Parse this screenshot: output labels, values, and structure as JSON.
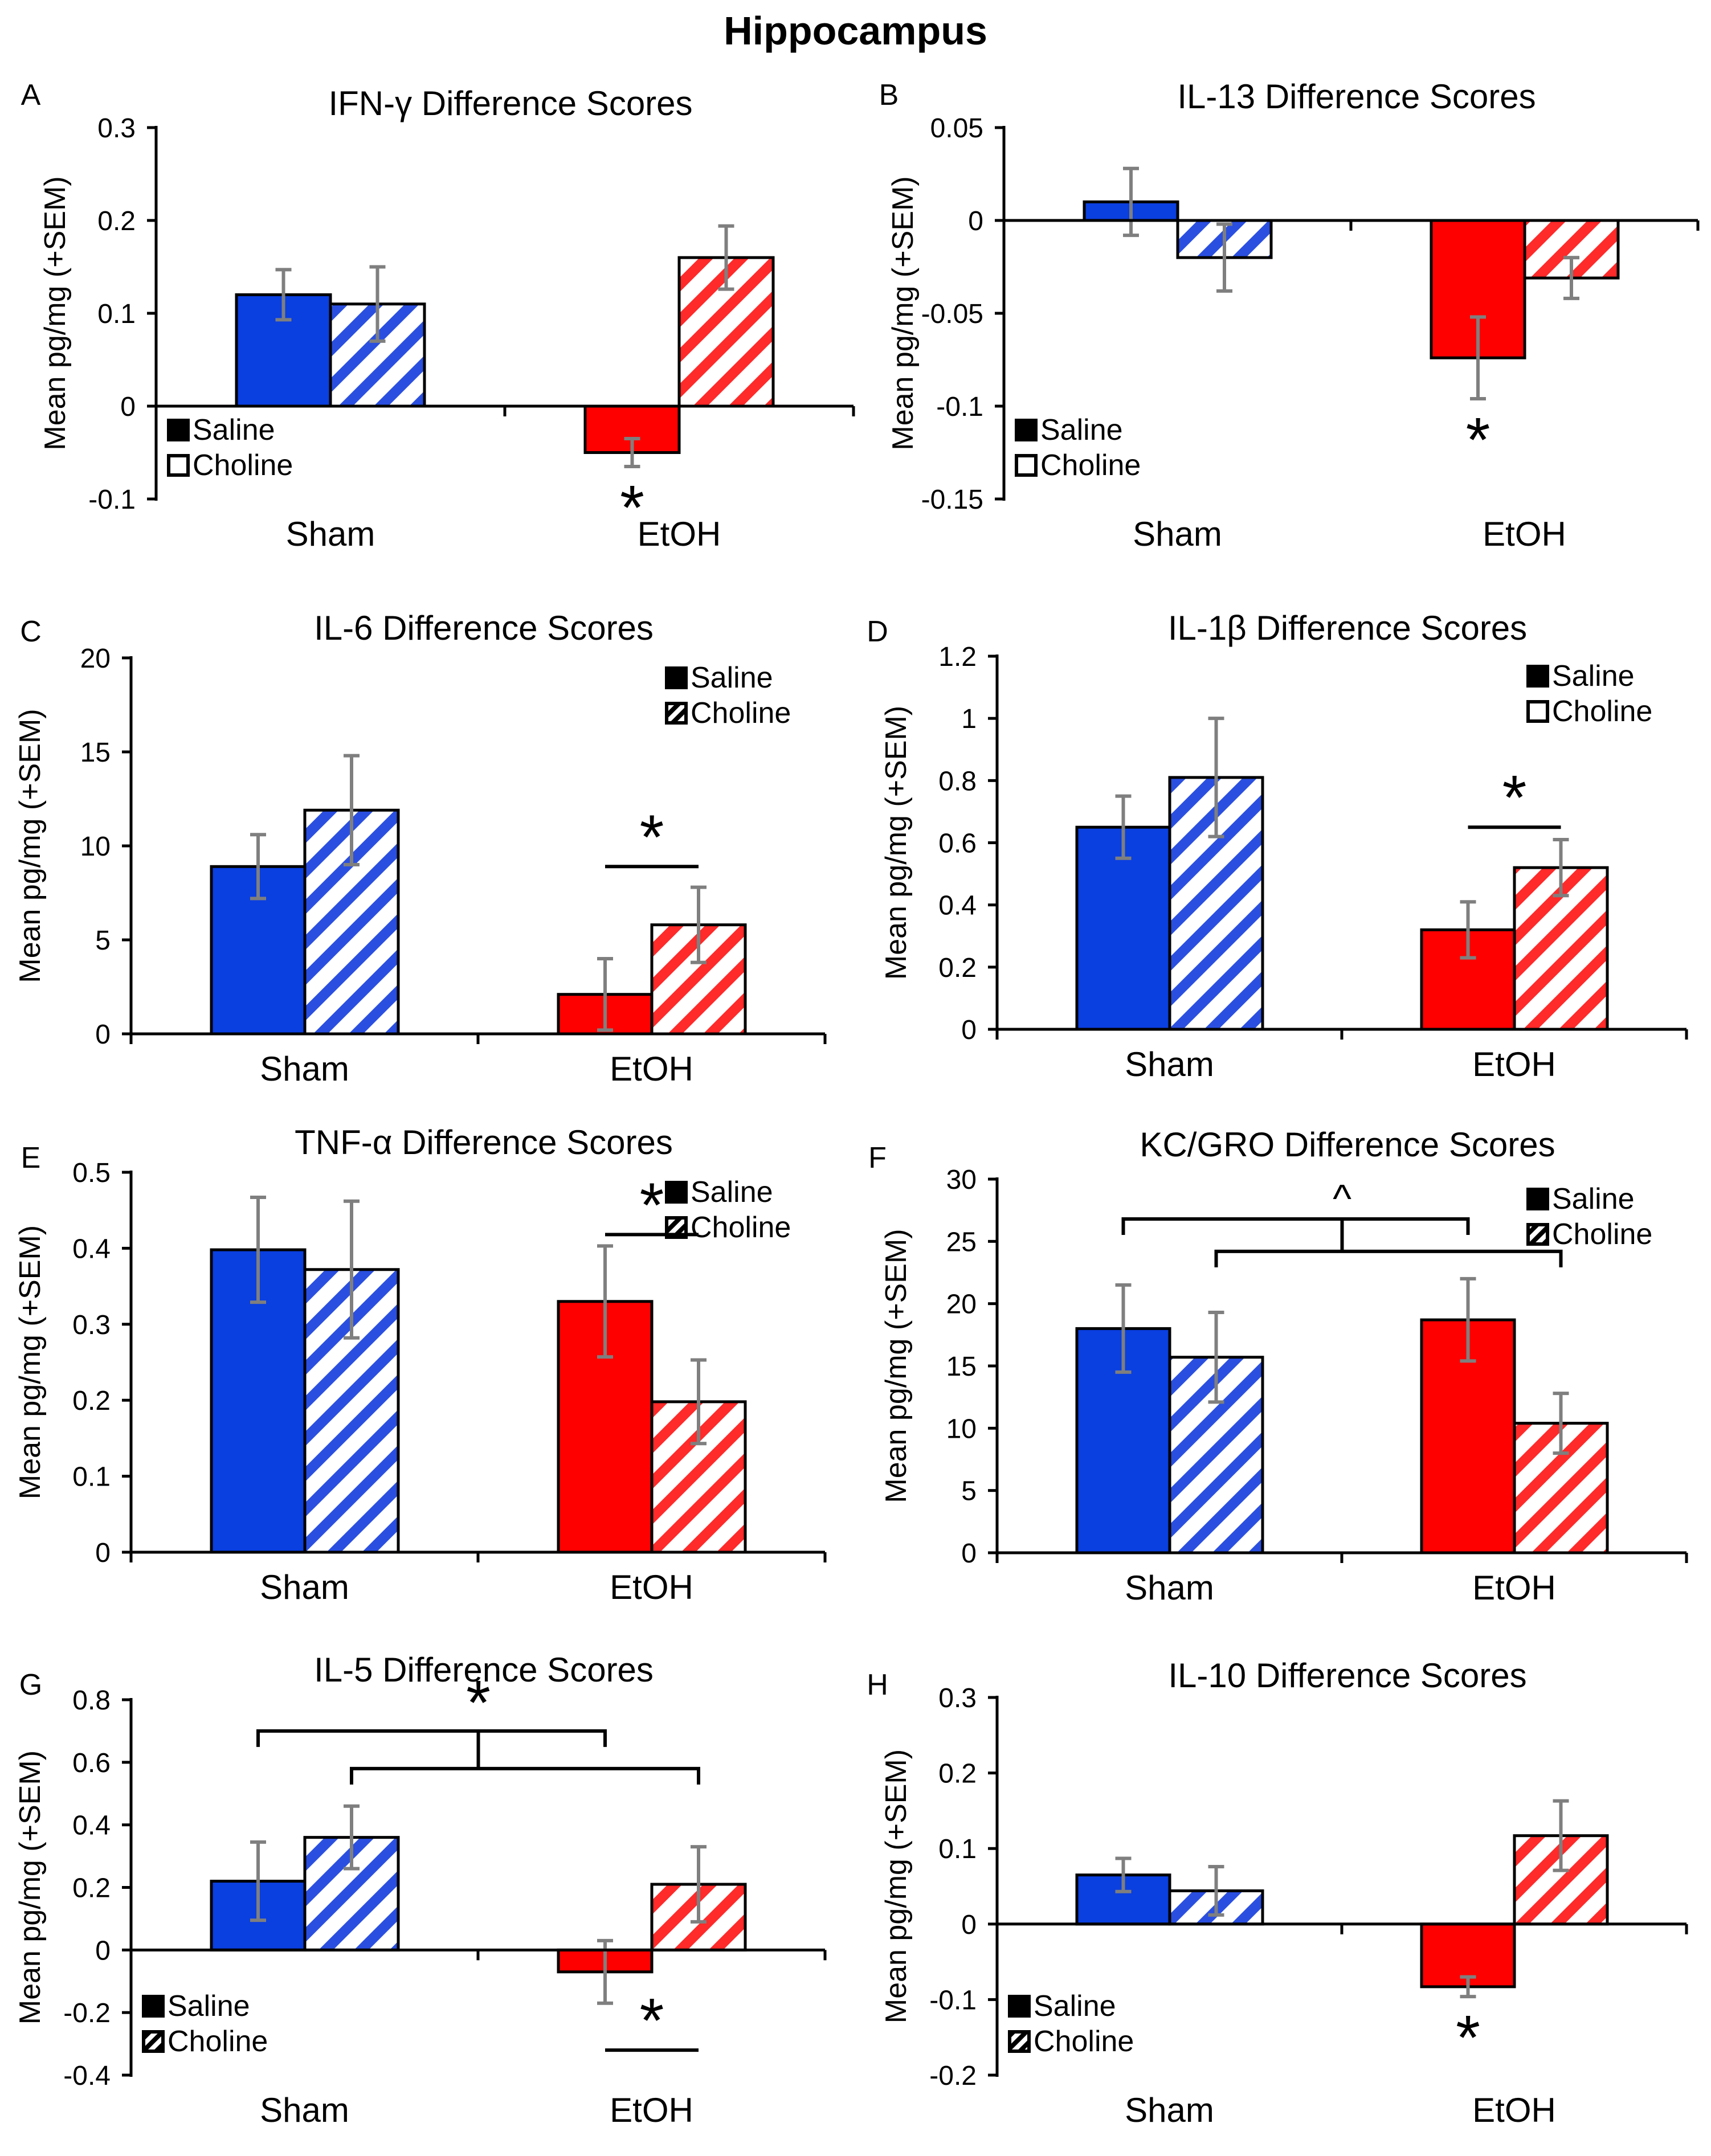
{
  "figure_title": "Hippocampus",
  "colors": {
    "saline_sham": "#0a3fe0",
    "choline_sham_stripe": "#2a4fe0",
    "saline_etoh": "#ff0000",
    "choline_etoh_stripe": "#ff2a2a",
    "error_bar": "#7f7f7f",
    "axis": "#000000"
  },
  "legend_labels": [
    "Saline",
    "Choline"
  ],
  "chart_data": [
    {
      "panel": "A",
      "type": "bar",
      "title": "IFN-γ Difference Scores",
      "ylabel": "Mean pg/mg (+SEM)",
      "categories": [
        "Sham",
        "EtOH"
      ],
      "ylim": [
        -0.1,
        0.3
      ],
      "yticks": [
        -0.1,
        0,
        0.1,
        0.2,
        0.3
      ],
      "ytick_labels": [
        "-0.1",
        "0",
        "0.1",
        "0.2",
        "0.3"
      ],
      "series": [
        {
          "name": "Saline",
          "values": [
            0.12,
            -0.05
          ],
          "sem": [
            0.027,
            0.015
          ]
        },
        {
          "name": "Choline",
          "values": [
            0.11,
            0.16
          ],
          "sem": [
            0.04,
            0.034
          ]
        }
      ],
      "legend_position": "bottom-left",
      "legend_glyph": "filled",
      "annotations": [
        {
          "text": "*",
          "type": "below-bar",
          "series": 0,
          "category": 1
        }
      ]
    },
    {
      "panel": "B",
      "type": "bar",
      "title": "IL-13 Difference Scores",
      "ylabel": "Mean pg/mg (+SEM)",
      "categories": [
        "Sham",
        "EtOH"
      ],
      "ylim": [
        -0.15,
        0.05
      ],
      "yticks": [
        -0.15,
        -0.1,
        -0.05,
        0,
        0.05
      ],
      "ytick_labels": [
        "-0.15",
        "-0.1",
        "-0.05",
        "0",
        "0.05"
      ],
      "series": [
        {
          "name": "Saline",
          "values": [
            0.01,
            -0.074
          ],
          "sem": [
            0.018,
            0.022
          ]
        },
        {
          "name": "Choline",
          "values": [
            -0.02,
            -0.031
          ],
          "sem": [
            0.018,
            0.011
          ]
        }
      ],
      "legend_position": "bottom-left",
      "legend_glyph": "open",
      "annotations": [
        {
          "text": "*",
          "type": "below-bar",
          "series": 0,
          "category": 1
        }
      ]
    },
    {
      "panel": "C",
      "type": "bar",
      "title": "IL-6 Difference Scores",
      "ylabel": "Mean pg/mg (+SEM)",
      "categories": [
        "Sham",
        "EtOH"
      ],
      "ylim": [
        0,
        20
      ],
      "yticks": [
        0,
        5,
        10,
        15,
        20
      ],
      "ytick_labels": [
        "0",
        "5",
        "10",
        "15",
        "20"
      ],
      "series": [
        {
          "name": "Saline",
          "values": [
            8.9,
            2.1
          ],
          "sem": [
            1.7,
            1.9
          ]
        },
        {
          "name": "Choline",
          "values": [
            11.9,
            5.8
          ],
          "sem": [
            2.9,
            2.0
          ]
        }
      ],
      "legend_position": "top-right",
      "legend_glyph": "hatched",
      "annotations": [
        {
          "text": "*",
          "type": "line",
          "y": 8.9,
          "from": [
            0,
            1
          ],
          "to": [
            1,
            1
          ]
        }
      ]
    },
    {
      "panel": "D",
      "type": "bar",
      "title": "IL-1β Difference Scores",
      "ylabel": "Mean pg/mg (+SEM)",
      "categories": [
        "Sham",
        "EtOH"
      ],
      "ylim": [
        0,
        1.2
      ],
      "yticks": [
        0,
        0.2,
        0.4,
        0.6,
        0.8,
        1,
        1.2
      ],
      "ytick_labels": [
        "0",
        "0.2",
        "0.4",
        "0.6",
        "0.8",
        "1",
        "1.2"
      ],
      "series": [
        {
          "name": "Saline",
          "values": [
            0.65,
            0.32
          ],
          "sem": [
            0.1,
            0.09
          ]
        },
        {
          "name": "Choline",
          "values": [
            0.81,
            0.52
          ],
          "sem": [
            0.19,
            0.09
          ]
        }
      ],
      "legend_position": "top-right",
      "legend_glyph": "open",
      "annotations": [
        {
          "text": "*",
          "type": "line",
          "y": 0.65,
          "from": [
            0,
            1
          ],
          "to": [
            1,
            1
          ]
        }
      ]
    },
    {
      "panel": "E",
      "type": "bar",
      "title": "TNF-α Difference Scores",
      "ylabel": "Mean pg/mg (+SEM)",
      "categories": [
        "Sham",
        "EtOH"
      ],
      "ylim": [
        0,
        0.5
      ],
      "yticks": [
        0,
        0.1,
        0.2,
        0.3,
        0.4,
        0.5
      ],
      "ytick_labels": [
        "0",
        "0.1",
        "0.2",
        "0.3",
        "0.4",
        "0.5"
      ],
      "series": [
        {
          "name": "Saline",
          "values": [
            0.398,
            0.33
          ],
          "sem": [
            0.069,
            0.073
          ]
        },
        {
          "name": "Choline",
          "values": [
            0.372,
            0.198
          ],
          "sem": [
            0.09,
            0.055
          ]
        }
      ],
      "legend_position": "top-right",
      "legend_glyph": "hatched",
      "annotations": [
        {
          "text": "*",
          "type": "line",
          "y": 0.418,
          "from": [
            0,
            1
          ],
          "to": [
            1,
            1
          ]
        }
      ]
    },
    {
      "panel": "F",
      "type": "bar",
      "title": "KC/GRO Difference Scores",
      "ylabel": "Mean pg/mg (+SEM)",
      "categories": [
        "Sham",
        "EtOH"
      ],
      "ylim": [
        0,
        30
      ],
      "yticks": [
        0,
        5,
        10,
        15,
        20,
        25,
        30
      ],
      "ytick_labels": [
        "0",
        "5",
        "10",
        "15",
        "20",
        "25",
        "30"
      ],
      "series": [
        {
          "name": "Saline",
          "values": [
            18.0,
            18.7
          ],
          "sem": [
            3.5,
            3.3
          ]
        },
        {
          "name": "Choline",
          "values": [
            15.7,
            10.4
          ],
          "sem": [
            3.6,
            2.4
          ]
        }
      ],
      "legend_position": "top-right",
      "legend_glyph": "hatched",
      "annotations": [
        {
          "text": "^",
          "type": "double-bracket",
          "y_outer": 26.8,
          "y_inner": 24.2
        }
      ]
    },
    {
      "panel": "G",
      "type": "bar",
      "title": "IL-5 Difference Scores",
      "ylabel": "Mean pg/mg (+SEM)",
      "categories": [
        "Sham",
        "EtOH"
      ],
      "ylim": [
        -0.4,
        0.8
      ],
      "yticks": [
        -0.4,
        -0.2,
        0,
        0.2,
        0.4,
        0.6,
        0.8
      ],
      "ytick_labels": [
        "-0.4",
        "-0.2",
        "0",
        "0.2",
        "0.4",
        "0.6",
        "0.8"
      ],
      "series": [
        {
          "name": "Saline",
          "values": [
            0.22,
            -0.07
          ],
          "sem": [
            0.125,
            0.1
          ]
        },
        {
          "name": "Choline",
          "values": [
            0.36,
            0.21
          ],
          "sem": [
            0.1,
            0.12
          ]
        }
      ],
      "legend_position": "bottom-left",
      "legend_glyph": "hatched",
      "annotations": [
        {
          "text": "*",
          "type": "double-bracket",
          "y_outer": 0.7,
          "y_inner": 0.58
        },
        {
          "text": "*",
          "type": "line-below",
          "y": -0.32,
          "from": [
            0,
            1
          ],
          "to": [
            1,
            1
          ]
        }
      ]
    },
    {
      "panel": "H",
      "type": "bar",
      "title": "IL-10 Difference Scores",
      "ylabel": "Mean pg/mg (+SEM)",
      "categories": [
        "Sham",
        "EtOH"
      ],
      "ylim": [
        -0.2,
        0.3
      ],
      "yticks": [
        -0.2,
        -0.1,
        0,
        0.1,
        0.2,
        0.3
      ],
      "ytick_labels": [
        "-0.2",
        "-0.1",
        "0",
        "0.1",
        "0.2",
        "0.3"
      ],
      "series": [
        {
          "name": "Saline",
          "values": [
            0.065,
            -0.083
          ],
          "sem": [
            0.022,
            0.013
          ]
        },
        {
          "name": "Choline",
          "values": [
            0.044,
            0.117
          ],
          "sem": [
            0.032,
            0.046
          ]
        }
      ],
      "legend_position": "bottom-left",
      "legend_glyph": "hatched",
      "annotations": [
        {
          "text": "*",
          "type": "below-bar",
          "series": 0,
          "category": 1
        }
      ]
    }
  ]
}
